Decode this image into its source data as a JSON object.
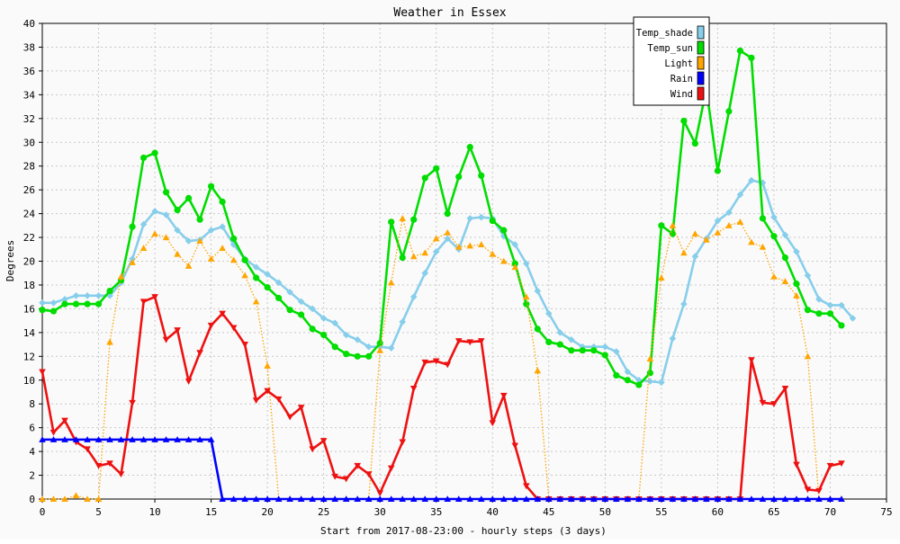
{
  "chart_data": {
    "type": "line",
    "title": "Weather in Essex",
    "xlabel": "Start from 2017-08-23:00 - hourly steps (3 days)",
    "ylabel": "Degrees",
    "xlim": [
      0,
      75
    ],
    "ylim": [
      0,
      40
    ],
    "xticks": [
      0,
      5,
      10,
      15,
      20,
      25,
      30,
      35,
      40,
      45,
      50,
      55,
      60,
      65,
      70,
      75
    ],
    "yticks": [
      0,
      2,
      4,
      6,
      8,
      10,
      12,
      14,
      16,
      18,
      20,
      22,
      24,
      26,
      28,
      30,
      32,
      34,
      36,
      38,
      40
    ],
    "grid": true,
    "legend_position": "top-right",
    "series": [
      {
        "name": "Temp_shade",
        "color": "#87ceeb",
        "marker": "diamond",
        "line_style": "solid",
        "values": [
          16.5,
          16.5,
          16.8,
          17.1,
          17.1,
          17.1,
          17.1,
          18.2,
          20.2,
          23.1,
          24.2,
          23.9,
          22.6,
          21.7,
          21.8,
          22.6,
          22.9,
          21.4,
          20.2,
          19.5,
          18.9,
          18.2,
          17.4,
          16.6,
          16.0,
          15.2,
          14.8,
          13.8,
          13.4,
          12.8,
          12.8,
          12.7,
          14.9,
          17.0,
          19.0,
          20.8,
          21.9,
          21.0,
          23.6,
          23.7,
          23.6,
          22.1,
          21.4,
          19.8,
          17.5,
          15.6,
          14.0,
          13.4,
          12.8,
          12.8,
          12.8,
          12.4,
          10.7,
          10.0,
          9.9,
          9.8,
          13.5,
          16.4,
          20.4,
          21.9,
          23.4,
          24.1,
          25.6,
          26.8,
          26.6,
          23.7,
          22.2,
          20.8,
          18.8,
          16.8,
          16.3,
          16.3,
          15.2
        ]
      },
      {
        "name": "Temp_sun",
        "color": "#00dd00",
        "marker": "circle",
        "line_style": "solid",
        "values": [
          15.9,
          15.8,
          16.4,
          16.4,
          16.4,
          16.4,
          17.5,
          18.4,
          22.9,
          28.7,
          29.1,
          25.8,
          24.3,
          25.3,
          23.5,
          26.3,
          25.0,
          21.9,
          20.1,
          18.6,
          17.8,
          16.9,
          15.9,
          15.5,
          14.3,
          13.8,
          12.8,
          12.2,
          12.0,
          12.0,
          13.1,
          23.3,
          20.3,
          23.5,
          27.0,
          27.8,
          24.0,
          27.1,
          29.6,
          27.2,
          23.4,
          22.6,
          19.8,
          16.4,
          14.3,
          13.2,
          13.0,
          12.5,
          12.5,
          12.5,
          12.1,
          10.4,
          10.0,
          9.6,
          10.6,
          23.0,
          22.3,
          31.8,
          29.9,
          34.5,
          27.6,
          32.6,
          37.7,
          37.1,
          23.6,
          22.1,
          20.3,
          18.1,
          15.9,
          15.6,
          15.6,
          14.6
        ]
      },
      {
        "name": "Light",
        "color": "#ffa500",
        "marker": "triangle-up",
        "line_style": "dotted",
        "values": [
          0.0,
          0.0,
          0.0,
          0.3,
          0.0,
          0.0,
          13.2,
          18.7,
          19.9,
          21.1,
          22.3,
          22.0,
          20.6,
          19.6,
          21.7,
          20.2,
          21.1,
          20.1,
          18.8,
          16.6,
          11.2,
          0.0,
          0.0,
          0.0,
          0.0,
          0.0,
          0.0,
          0.0,
          0.0,
          0.0,
          12.5,
          18.2,
          23.6,
          20.4,
          20.7,
          21.9,
          22.4,
          21.2,
          21.3,
          21.4,
          20.6,
          20.0,
          19.5,
          17.0,
          10.8,
          0.0,
          0.0,
          0.0,
          0.0,
          0.0,
          0.0,
          0.0,
          0.0,
          0.0,
          11.8,
          18.6,
          23.0,
          20.7,
          22.3,
          21.8,
          22.4,
          23.0,
          23.3,
          21.6,
          21.2,
          18.7,
          18.3,
          17.1,
          12.0,
          0.0,
          0.0,
          0.0
        ]
      },
      {
        "name": "Rain",
        "color": "#0000ff",
        "marker": "triangle-up",
        "line_style": "solid",
        "values": [
          5.0,
          5.0,
          5.0,
          5.0,
          5.0,
          5.0,
          5.0,
          5.0,
          5.0,
          5.0,
          5.0,
          5.0,
          5.0,
          5.0,
          5.0,
          5.0,
          0.0,
          0.0,
          0.0,
          0.0,
          0.0,
          0.0,
          0.0,
          0.0,
          0.0,
          0.0,
          0.0,
          0.0,
          0.0,
          0.0,
          0.0,
          0.0,
          0.0,
          0.0,
          0.0,
          0.0,
          0.0,
          0.0,
          0.0,
          0.0,
          0.0,
          0.0,
          0.0,
          0.0,
          0.0,
          0.0,
          0.0,
          0.0,
          0.0,
          0.0,
          0.0,
          0.0,
          0.0,
          0.0,
          0.0,
          0.0,
          0.0,
          0.0,
          0.0,
          0.0,
          0.0,
          0.0,
          0.0,
          0.0,
          0.0,
          0.0,
          0.0,
          0.0,
          0.0,
          0.0,
          0.0,
          0.0
        ]
      },
      {
        "name": "Wind",
        "color": "#ee1111",
        "marker": "triangle-down",
        "line_style": "solid",
        "values": [
          10.7,
          5.6,
          6.6,
          4.8,
          4.2,
          2.8,
          3.0,
          2.1,
          8.1,
          16.6,
          17.0,
          13.4,
          14.2,
          9.9,
          12.3,
          14.6,
          15.6,
          14.4,
          13.0,
          8.3,
          9.1,
          8.4,
          6.9,
          7.7,
          4.2,
          4.9,
          1.9,
          1.7,
          2.8,
          2.1,
          0.5,
          2.6,
          4.8,
          9.3,
          11.5,
          11.6,
          11.3,
          13.3,
          13.2,
          13.3,
          6.4,
          8.7,
          4.5,
          1.1,
          0.0,
          0.0,
          0.0,
          0.0,
          0.0,
          0.0,
          0.0,
          0.0,
          0.0,
          0.0,
          0.0,
          0.0,
          0.0,
          0.0,
          0.0,
          0.0,
          0.0,
          0.0,
          0.0,
          11.7,
          8.1,
          8.0,
          9.3,
          2.9,
          0.8,
          0.7,
          2.8,
          3.0
        ]
      }
    ]
  }
}
